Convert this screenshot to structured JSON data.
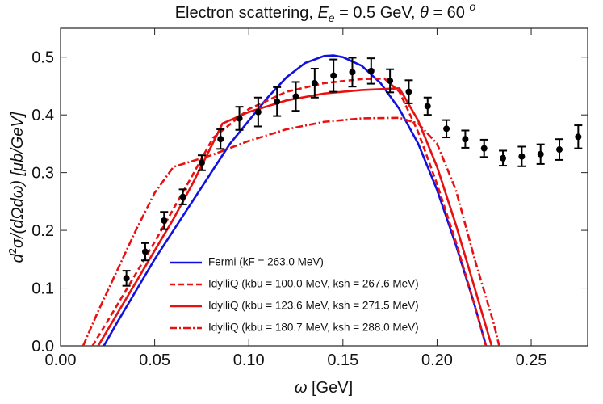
{
  "chart_data": {
    "type": "line",
    "title": [
      "Electron scattering, ",
      "E",
      "e",
      " = 0.5 GeV, ",
      "θ",
      " = 60 ",
      "o"
    ],
    "x_label": [
      "ω",
      " [GeV]"
    ],
    "y_label": [
      "d",
      "2",
      "σ/(dΩdω) [μb/GeV]"
    ],
    "xlim": [
      0,
      0.28
    ],
    "ylim": [
      0,
      0.55
    ],
    "xticks": [
      {
        "value": 0,
        "label": "0.00"
      },
      {
        "value": 0.05,
        "label": "0.05"
      },
      {
        "value": 0.1,
        "label": "0.10"
      },
      {
        "value": 0.15,
        "label": "0.15"
      },
      {
        "value": 0.2,
        "label": "0.20"
      },
      {
        "value": 0.25,
        "label": "0.25"
      }
    ],
    "yticks": [
      {
        "value": 0,
        "label": "0.0"
      },
      0.1,
      0.2,
      0.3,
      0.4,
      0.5
    ],
    "legend": "lower center",
    "series": [
      {
        "name": "Fermi (kF = 263.0 MeV)",
        "color": "#1010e0",
        "dash": "solid",
        "x": [
          0.023,
          0.03,
          0.04,
          0.05,
          0.06,
          0.07,
          0.08,
          0.09,
          0.1,
          0.11,
          0.12,
          0.13,
          0.14,
          0.145,
          0.15,
          0.16,
          0.17,
          0.18,
          0.19,
          0.2,
          0.21,
          0.22,
          0.226
        ],
        "values": [
          0,
          0.04,
          0.095,
          0.15,
          0.2,
          0.25,
          0.3,
          0.35,
          0.39,
          0.43,
          0.465,
          0.49,
          0.502,
          0.503,
          0.5,
          0.485,
          0.455,
          0.41,
          0.35,
          0.27,
          0.175,
          0.07,
          0
        ]
      },
      {
        "name": "IdylliQ (kbu = 100.0 MeV, ksh = 267.6 MeV)",
        "color": "#e81010",
        "dash": "dashed",
        "x": [
          0.017,
          0.03,
          0.05,
          0.07,
          0.081,
          0.1,
          0.12,
          0.14,
          0.16,
          0.172,
          0.18,
          0.19,
          0.2,
          0.21,
          0.22,
          0.226
        ],
        "values": [
          0,
          0.07,
          0.18,
          0.295,
          0.36,
          0.41,
          0.44,
          0.455,
          0.462,
          0.463,
          0.44,
          0.37,
          0.28,
          0.18,
          0.07,
          0
        ]
      },
      {
        "name": "IdylliQ (kbu = 123.6 MeV, ksh = 271.5 MeV)",
        "color": "#e81010",
        "dash": "solid",
        "x": [
          0.02,
          0.03,
          0.04,
          0.05,
          0.06,
          0.07,
          0.08,
          0.086,
          0.1,
          0.12,
          0.14,
          0.16,
          0.18,
          0.19,
          0.2,
          0.21,
          0.22,
          0.229
        ],
        "values": [
          0,
          0.055,
          0.11,
          0.165,
          0.22,
          0.28,
          0.345,
          0.385,
          0.405,
          0.425,
          0.437,
          0.443,
          0.446,
          0.39,
          0.31,
          0.21,
          0.1,
          0
        ]
      },
      {
        "name": "IdylliQ (kbu = 180.7 MeV, ksh = 288.0 MeV)",
        "color": "#e81010",
        "dash": "dashdot",
        "x": [
          0.012,
          0.02,
          0.03,
          0.04,
          0.05,
          0.06,
          0.08,
          0.1,
          0.12,
          0.14,
          0.16,
          0.18,
          0.19,
          0.2,
          0.21,
          0.22,
          0.23,
          0.233
        ],
        "values": [
          0,
          0.06,
          0.13,
          0.2,
          0.265,
          0.31,
          0.33,
          0.355,
          0.375,
          0.388,
          0.394,
          0.395,
          0.385,
          0.35,
          0.27,
          0.15,
          0.04,
          0
        ]
      }
    ],
    "points": {
      "color": "#000000",
      "x": [
        0.035,
        0.045,
        0.055,
        0.065,
        0.075,
        0.085,
        0.095,
        0.105,
        0.115,
        0.125,
        0.135,
        0.145,
        0.155,
        0.165,
        0.175,
        0.185,
        0.195,
        0.205,
        0.215,
        0.225,
        0.235,
        0.245,
        0.255,
        0.265,
        0.275
      ],
      "values": [
        0.117,
        0.163,
        0.217,
        0.258,
        0.317,
        0.358,
        0.394,
        0.405,
        0.423,
        0.432,
        0.455,
        0.468,
        0.474,
        0.476,
        0.459,
        0.44,
        0.415,
        0.376,
        0.358,
        0.342,
        0.325,
        0.328,
        0.332,
        0.34,
        0.362
      ],
      "errors": [
        0.013,
        0.015,
        0.015,
        0.013,
        0.013,
        0.017,
        0.02,
        0.025,
        0.025,
        0.025,
        0.025,
        0.028,
        0.025,
        0.022,
        0.02,
        0.02,
        0.015,
        0.015,
        0.015,
        0.015,
        0.013,
        0.017,
        0.017,
        0.018,
        0.02
      ]
    }
  }
}
